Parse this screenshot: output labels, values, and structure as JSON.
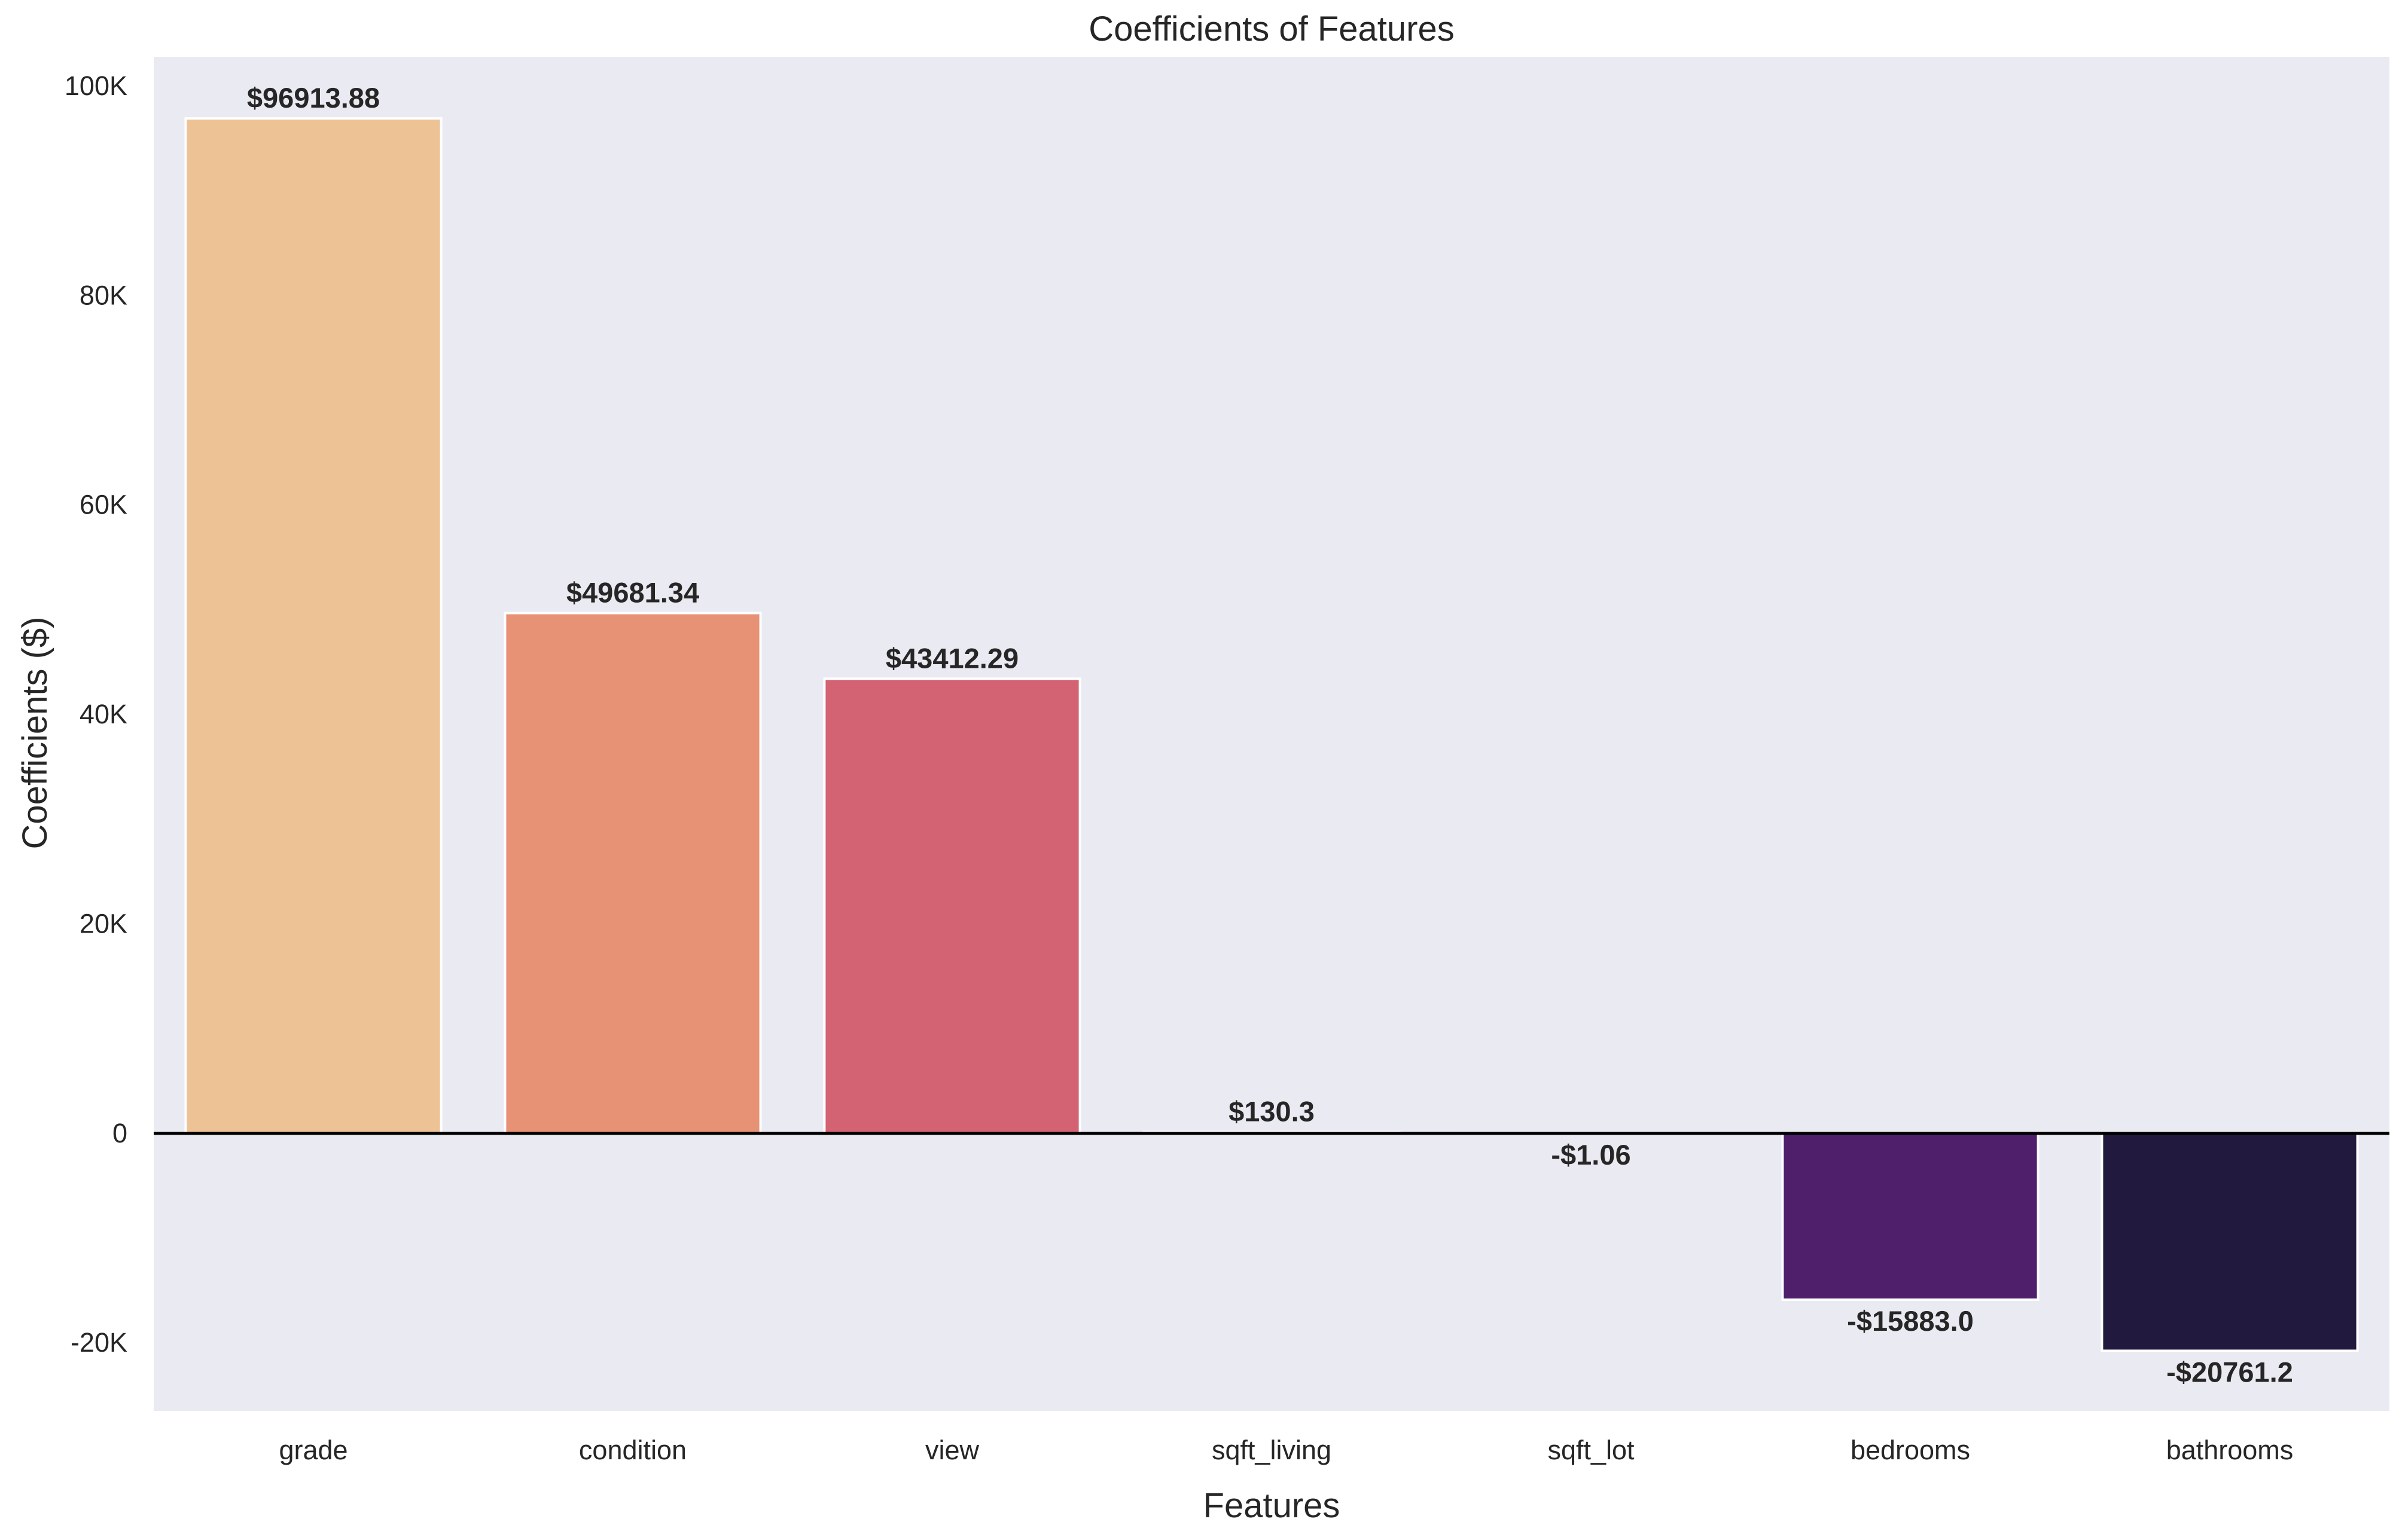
{
  "chart_data": {
    "type": "bar",
    "title": "Coefficients of Features",
    "xlabel": "Features",
    "ylabel": "Coefficients ($)",
    "categories": [
      "grade",
      "condition",
      "view",
      "sqft_living",
      "sqft_lot",
      "bedrooms",
      "bathrooms"
    ],
    "values": [
      96913.88,
      49681.34,
      43412.29,
      130.3,
      -1.06,
      -15883.0,
      -20761.2
    ],
    "value_labels": [
      "$96913.88",
      "$49681.34",
      "$43412.29",
      "$130.3",
      "-$1.06",
      "-$15883.0",
      "-$20761.2"
    ],
    "colors": [
      "#edc295",
      "#e89275",
      "#d36372",
      "#ad4a80",
      "#7a3582",
      "#4f1f6c",
      "#211a3e"
    ],
    "ylim": [
      -26500,
      102800
    ],
    "yticks": [
      -20000,
      0,
      20000,
      40000,
      60000,
      80000,
      100000
    ],
    "ytick_labels": [
      "-20K",
      "0",
      "20K",
      "40K",
      "60K",
      "80K",
      "100K"
    ],
    "grid": false,
    "background_color": "#eaeaf2",
    "zero_line": true
  }
}
